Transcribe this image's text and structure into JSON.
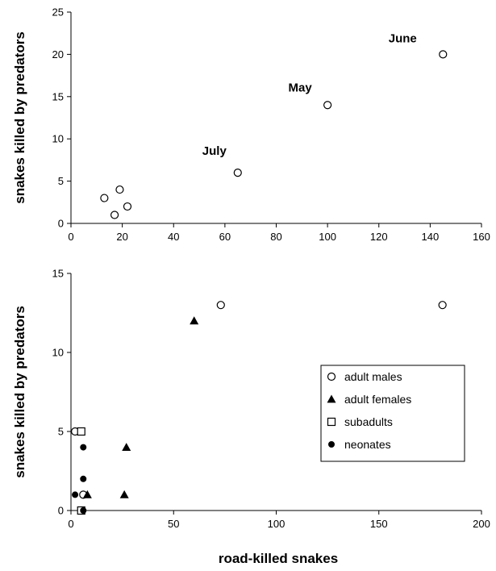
{
  "shared_xlabel": "road-killed snakes",
  "chart_data": [
    {
      "type": "scatter",
      "title": "",
      "xlabel": "",
      "ylabel": "snakes killed by predators",
      "xlim": [
        0,
        160
      ],
      "ylim": [
        0,
        25
      ],
      "xticks": [
        "0",
        "20",
        "40",
        "60",
        "80",
        "100",
        "120",
        "140",
        "160"
      ],
      "yticks": [
        "0",
        "5",
        "10",
        "15",
        "20",
        "25"
      ],
      "grid": false,
      "series": [
        {
          "marker": "open-circle",
          "points": [
            {
              "x": 13,
              "y": 3
            },
            {
              "x": 17,
              "y": 1
            },
            {
              "x": 19,
              "y": 4
            },
            {
              "x": 22,
              "y": 2
            },
            {
              "x": 65,
              "y": 6
            },
            {
              "x": 100,
              "y": 14
            },
            {
              "x": 145,
              "y": 20
            }
          ]
        }
      ],
      "annotations": [
        {
          "text": "July",
          "x": 65,
          "y": 6
        },
        {
          "text": "May",
          "x": 100,
          "y": 14
        },
        {
          "text": "June",
          "x": 145,
          "y": 20
        }
      ]
    },
    {
      "type": "scatter",
      "title": "",
      "xlabel": "",
      "ylabel": "snakes killed by predators",
      "xlim": [
        0,
        200
      ],
      "ylim": [
        0,
        15
      ],
      "xticks": [
        "0",
        "50",
        "100",
        "150",
        "200"
      ],
      "yticks": [
        "0",
        "5",
        "10",
        "15"
      ],
      "grid": false,
      "legend_position": "right",
      "series": [
        {
          "name": "adult males",
          "marker": "open-circle",
          "points": [
            {
              "x": 2,
              "y": 5
            },
            {
              "x": 6,
              "y": 1
            },
            {
              "x": 73,
              "y": 13
            },
            {
              "x": 181,
              "y": 13
            }
          ]
        },
        {
          "name": "adult females",
          "marker": "filled-triangle",
          "points": [
            {
              "x": 8,
              "y": 1
            },
            {
              "x": 26,
              "y": 1
            },
            {
              "x": 27,
              "y": 4
            },
            {
              "x": 60,
              "y": 12
            }
          ]
        },
        {
          "name": "subadults",
          "marker": "open-square",
          "points": [
            {
              "x": 5,
              "y": 5
            },
            {
              "x": 5,
              "y": 0
            }
          ]
        },
        {
          "name": "neonates",
          "marker": "filled-circle",
          "points": [
            {
              "x": 2,
              "y": 1
            },
            {
              "x": 6,
              "y": 4
            },
            {
              "x": 6,
              "y": 2
            },
            {
              "x": 6,
              "y": 0
            }
          ]
        }
      ]
    }
  ]
}
